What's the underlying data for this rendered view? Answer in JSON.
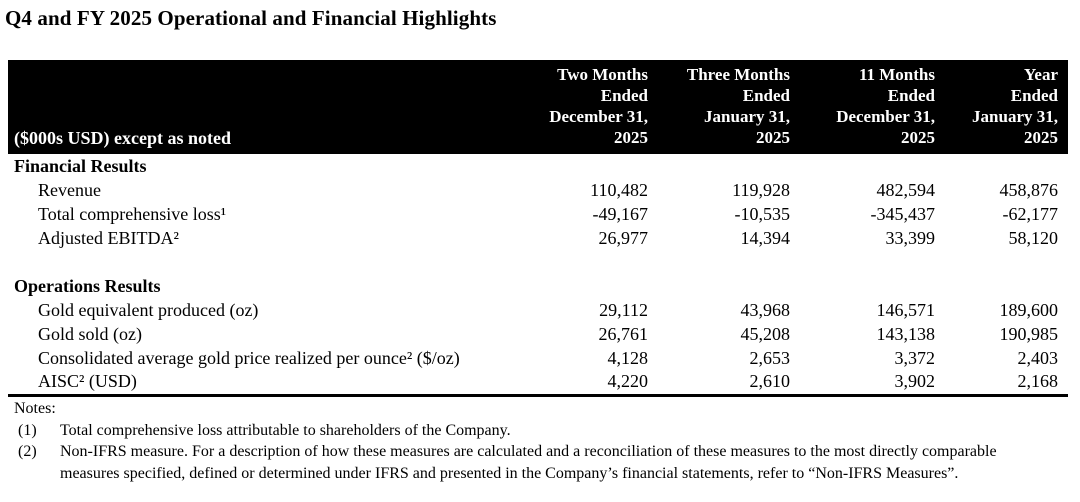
{
  "title": "Q4 and FY 2025 Operational and Financial Highlights",
  "table": {
    "header": {
      "label_col": "($000s USD) except as noted",
      "columns": [
        "Two Months\nEnded\nDecember 31,\n2025",
        "Three Months\nEnded\nJanuary 31,\n2025",
        "11 Months\nEnded\nDecember 31,\n2025",
        "Year\nEnded\nJanuary 31,\n2025"
      ]
    },
    "sections": [
      {
        "heading": "Financial Results",
        "rows": [
          {
            "label": "Revenue",
            "values": [
              "110,482",
              "119,928",
              "482,594",
              "458,876"
            ]
          },
          {
            "label": "Total comprehensive loss¹",
            "values": [
              "-49,167",
              "-10,535",
              "-345,437",
              "-62,177"
            ]
          },
          {
            "label": "Adjusted EBITDA²",
            "values": [
              "26,977",
              "14,394",
              "33,399",
              "58,120"
            ]
          }
        ]
      },
      {
        "heading": "Operations Results",
        "rows": [
          {
            "label": "Gold equivalent produced (oz)",
            "values": [
              "29,112",
              "43,968",
              "146,571",
              "189,600"
            ]
          },
          {
            "label": "Gold sold (oz)",
            "values": [
              "26,761",
              "45,208",
              "143,138",
              "190,985"
            ]
          },
          {
            "label": "Consolidated average gold price realized per ounce² ($/oz)",
            "values": [
              "4,128",
              "2,653",
              "3,372",
              "2,403"
            ]
          },
          {
            "label": "AISC² (USD)",
            "values": [
              "4,220",
              "2,610",
              "3,902",
              "2,168"
            ]
          }
        ]
      }
    ]
  },
  "notes": {
    "heading": "Notes:",
    "items": [
      {
        "marker": "(1)",
        "text": "Total comprehensive loss attributable to shareholders of the Company."
      },
      {
        "marker": "(2)",
        "text": "Non-IFRS measure. For a description of how these measures are calculated and a reconciliation of these measures to the most directly comparable measures specified, defined or determined under IFRS and presented in the Company’s financial statements, refer to “Non-IFRS Measures”."
      }
    ]
  },
  "colors": {
    "header_background": "#000000",
    "header_text": "#ffffff",
    "body_text": "#000000",
    "page_background": "#ffffff"
  }
}
